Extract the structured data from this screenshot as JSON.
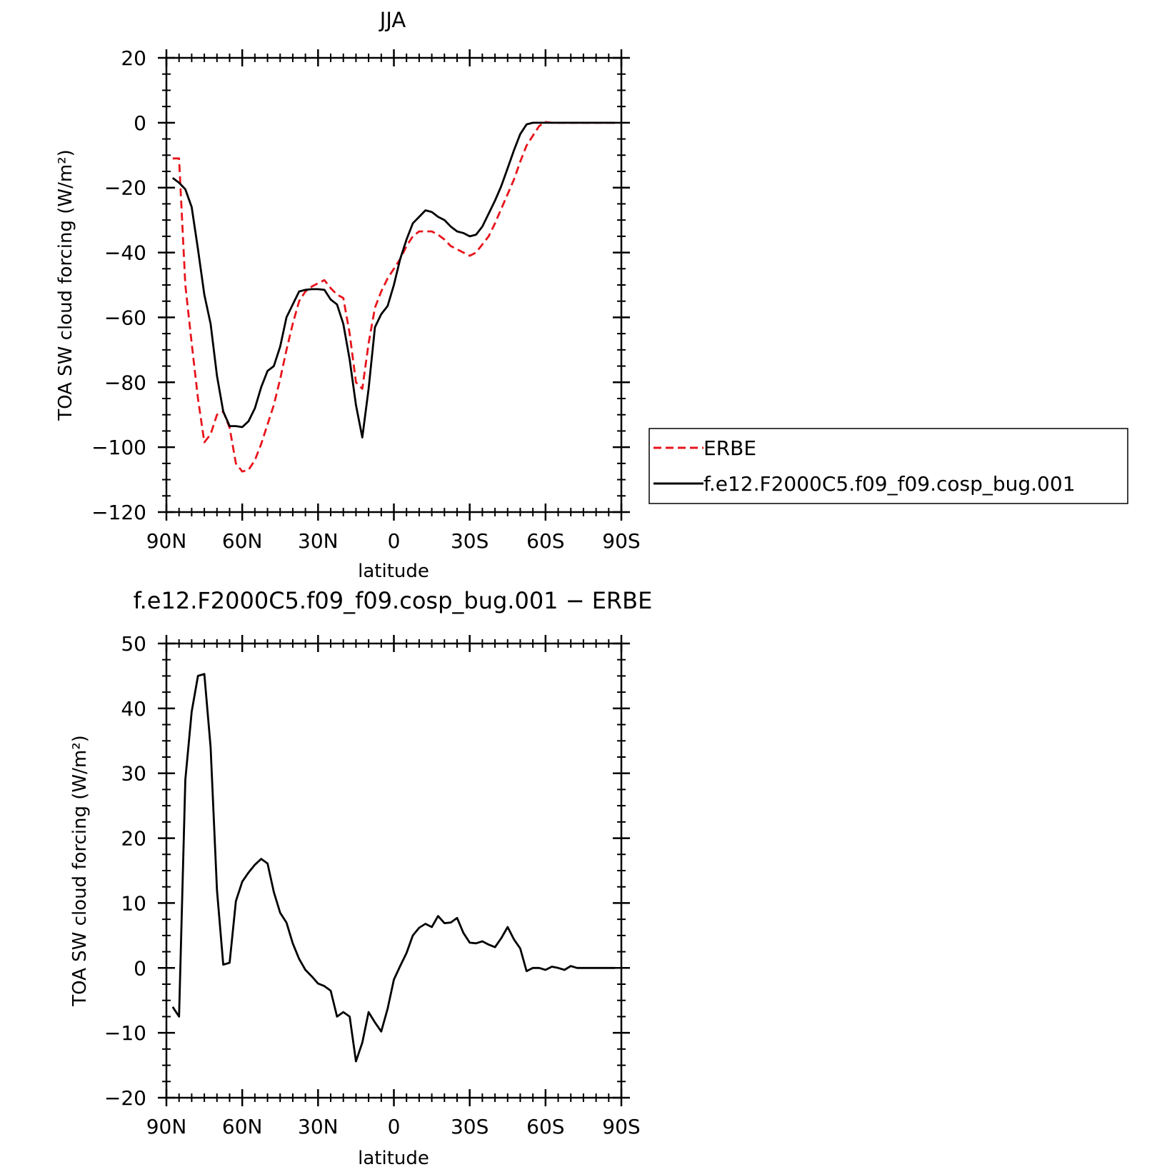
{
  "chart_data": [
    {
      "type": "line",
      "title": "JJA",
      "xlabel": "latitude",
      "ylabel": "TOA SW cloud forcing (W/m²)",
      "ylim": [
        -120,
        20
      ],
      "yticks": [
        -120,
        -100,
        -80,
        -60,
        -40,
        -20,
        0,
        20
      ],
      "ytick_labels": [
        "−120",
        "−100",
        "−80",
        "−60",
        "−40",
        "−20",
        "0",
        "20"
      ],
      "xlim": [
        90,
        -90
      ],
      "xticks": [
        90,
        60,
        30,
        0,
        -30,
        -60,
        -90
      ],
      "xtick_labels": [
        "90N",
        "60N",
        "30N",
        "0",
        "30S",
        "60S",
        "90S"
      ],
      "legend_position": "right",
      "series": [
        {
          "name": "ERBE",
          "color": "#e8141b",
          "dash": "dashed",
          "x": [
            87.5,
            85,
            82.5,
            80,
            77.5,
            75,
            72.5,
            70,
            67.5,
            65,
            62.5,
            60,
            57.5,
            55,
            52.5,
            50,
            47.5,
            45,
            42.5,
            40,
            37.5,
            35,
            32.5,
            30,
            27.5,
            25,
            22.5,
            20,
            17.5,
            15,
            12.5,
            10,
            7.5,
            5,
            2.5,
            0,
            -2.5,
            -5,
            -7.5,
            -10,
            -12.5,
            -15,
            -17.5,
            -20,
            -22.5,
            -25,
            -27.5,
            -30,
            -32.5,
            -35,
            -37.5,
            -40,
            -42.5,
            -45,
            -47.5,
            -50,
            -52.5,
            -55,
            -57.5,
            -60,
            -62.5,
            -65,
            -67.5,
            -70,
            -72.5,
            -75,
            -77.5,
            -80,
            -82.5,
            -85,
            -87.5
          ],
          "y": [
            -11,
            -11,
            -50,
            -68,
            -85,
            -98.5,
            -96,
            -90,
            -89,
            -94,
            -105,
            -107.5,
            -107,
            -104,
            -99,
            -93,
            -87,
            -79,
            -70,
            -62,
            -55,
            -52,
            -50.5,
            -49.5,
            -48.5,
            -51,
            -53,
            -54,
            -65,
            -80,
            -82,
            -68,
            -57,
            -52,
            -48,
            -45,
            -42,
            -38,
            -35,
            -33.5,
            -33.5,
            -33.5,
            -34.5,
            -36,
            -38,
            -39,
            -40,
            -41,
            -40,
            -37.5,
            -35,
            -31,
            -26.5,
            -22,
            -17.5,
            -12,
            -7,
            -4,
            -1,
            0.2,
            0,
            0,
            0,
            0,
            0,
            0,
            0,
            0,
            0,
            0,
            0
          ]
        },
        {
          "name": "f.e12.F2000C5.f09_f09.cosp_bug.001",
          "color": "#000000",
          "dash": "solid",
          "x": [
            87.5,
            85,
            82.5,
            80,
            77.5,
            75,
            72.5,
            70,
            67.5,
            65,
            62.5,
            60,
            57.5,
            55,
            52.5,
            50,
            47.5,
            45,
            42.5,
            40,
            37.5,
            35,
            32.5,
            30,
            27.5,
            25,
            22.5,
            20,
            17.5,
            15,
            12.5,
            10,
            7.5,
            5,
            2.5,
            0,
            -2.5,
            -5,
            -7.5,
            -10,
            -12.5,
            -15,
            -17.5,
            -20,
            -22.5,
            -25,
            -27.5,
            -30,
            -32.5,
            -35,
            -37.5,
            -40,
            -42.5,
            -45,
            -47.5,
            -50,
            -52.5,
            -55,
            -57.5,
            -60,
            -62.5,
            -65,
            -67.5,
            -70,
            -72.5,
            -75,
            -77.5,
            -80,
            -82.5,
            -85,
            -87.5
          ],
          "y": [
            -17,
            -18.5,
            -20.5,
            -26,
            -39,
            -53,
            -62,
            -78,
            -89,
            -93.5,
            -93.5,
            -93.8,
            -92,
            -88,
            -81.5,
            -76.5,
            -75,
            -69,
            -60,
            -56,
            -52,
            -51.5,
            -51.3,
            -51.3,
            -51.5,
            -54.5,
            -56,
            -62,
            -73,
            -87,
            -97,
            -82,
            -63,
            -59,
            -56.5,
            -50,
            -42,
            -36,
            -31,
            -29,
            -27,
            -27.5,
            -29,
            -30,
            -32,
            -33.5,
            -34,
            -35,
            -34.5,
            -32,
            -28,
            -24,
            -19.5,
            -14,
            -8.5,
            -3.5,
            -0.5,
            0,
            0,
            0,
            0,
            0,
            0,
            0,
            0,
            0,
            0,
            0,
            0,
            0,
            0
          ]
        }
      ]
    },
    {
      "type": "line",
      "title": "f.e12.F2000C5.f09_f09.cosp_bug.001 − ERBE",
      "xlabel": "latitude",
      "ylabel": "TOA SW cloud forcing (W/m²)",
      "ylim": [
        -20,
        50
      ],
      "yticks": [
        -20,
        -10,
        0,
        10,
        20,
        30,
        40,
        50
      ],
      "ytick_labels": [
        "−20",
        "−10",
        "0",
        "10",
        "20",
        "30",
        "40",
        "50"
      ],
      "xlim": [
        90,
        -90
      ],
      "xticks": [
        90,
        60,
        30,
        0,
        -30,
        -60,
        -90
      ],
      "xtick_labels": [
        "90N",
        "60N",
        "30N",
        "0",
        "30S",
        "60S",
        "90S"
      ],
      "series": [
        {
          "color": "#000000",
          "dash": "solid",
          "x": [
            87.5,
            85,
            82.5,
            80,
            77.5,
            75,
            72.5,
            70,
            67.5,
            65,
            62.5,
            60,
            57.5,
            55,
            52.5,
            50,
            47.5,
            45,
            42.5,
            40,
            37.5,
            35,
            32.5,
            30,
            27.5,
            25,
            22.5,
            20,
            17.5,
            15,
            12.5,
            10,
            7.5,
            5,
            2.5,
            0,
            -2.5,
            -5,
            -7.5,
            -10,
            -12.5,
            -15,
            -17.5,
            -20,
            -22.5,
            -25,
            -27.5,
            -30,
            -32.5,
            -35,
            -37.5,
            -40,
            -42.5,
            -45,
            -47.5,
            -50,
            -52.5,
            -55,
            -57.5,
            -60,
            -62.5,
            -65,
            -67.5,
            -70,
            -72.5,
            -75,
            -77.5,
            -80,
            -82.5,
            -85,
            -87.5
          ],
          "y": [
            -6,
            -7.5,
            29,
            39.5,
            45,
            45.3,
            34,
            12,
            0.5,
            0.8,
            10.3,
            13.3,
            14.7,
            15.9,
            16.8,
            16.1,
            11.7,
            8.5,
            7,
            3.8,
            1.4,
            -0.3,
            -1.3,
            -2.4,
            -2.8,
            -3.5,
            -7.5,
            -6.8,
            -7.5,
            -14.4,
            -11.5,
            -6.8,
            -8.4,
            -9.8,
            -6.3,
            -1.8,
            0.3,
            2.3,
            5,
            6.2,
            6.8,
            6.3,
            8,
            6.9,
            7,
            7.7,
            5.4,
            3.9,
            3.8,
            4.1,
            3.6,
            3.2,
            4.6,
            6.3,
            4.4,
            3,
            -0.5,
            0,
            0,
            -0.3,
            0.2,
            0,
            -0.3,
            0.3,
            0,
            0,
            0,
            0,
            0,
            0,
            0
          ]
        }
      ]
    }
  ]
}
